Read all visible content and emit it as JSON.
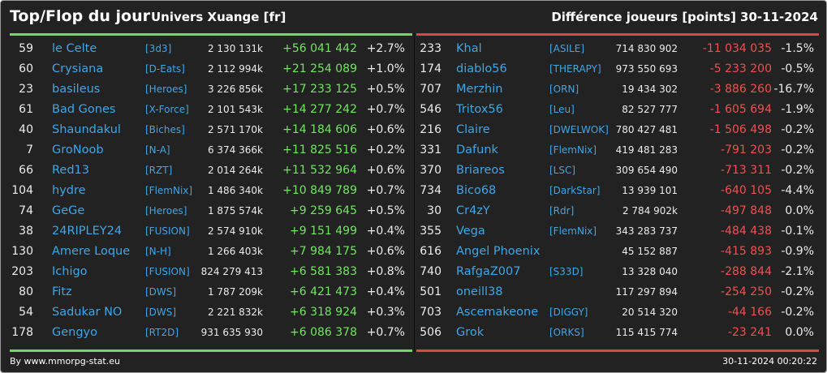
{
  "header": {
    "title": "Top/Flop du jour",
    "universe": "Univers Xuange [fr]",
    "metric": "Différence joueurs [points]",
    "date": "30-11-2024"
  },
  "colors": {
    "background": "#222222",
    "name_link": "#3fa6e8",
    "positive": "#72e561",
    "negative": "#ef5050",
    "top_accent": "#6bdc5e",
    "flop_accent": "#e0483f"
  },
  "top": [
    {
      "rank": "59",
      "name": "le Celte",
      "guild": "[3d3]",
      "points": "2 130 131k",
      "diff": "+56 041 442",
      "pct": "+2.7%"
    },
    {
      "rank": "60",
      "name": "Crysiana",
      "guild": "[D-Eats]",
      "points": "2 112 994k",
      "diff": "+21 254 089",
      "pct": "+1.0%"
    },
    {
      "rank": "23",
      "name": "basileus",
      "guild": "[Heroes]",
      "points": "3 226 856k",
      "diff": "+17 233 125",
      "pct": "+0.5%"
    },
    {
      "rank": "61",
      "name": "Bad Gones",
      "guild": "[X-Force]",
      "points": "2 101 543k",
      "diff": "+14 277 242",
      "pct": "+0.7%"
    },
    {
      "rank": "40",
      "name": "Shaundakul",
      "guild": "[Biches]",
      "points": "2 571 170k",
      "diff": "+14 184 606",
      "pct": "+0.6%"
    },
    {
      "rank": "7",
      "name": "GroNoob",
      "guild": "[N-A]",
      "points": "6 374 366k",
      "diff": "+11 825 516",
      "pct": "+0.2%"
    },
    {
      "rank": "66",
      "name": "Red13",
      "guild": "[RZT]",
      "points": "2 014 264k",
      "diff": "+11 532 964",
      "pct": "+0.6%"
    },
    {
      "rank": "104",
      "name": "hydre",
      "guild": "[FlemNix]",
      "points": "1 486 340k",
      "diff": "+10 849 789",
      "pct": "+0.7%"
    },
    {
      "rank": "74",
      "name": "GeGe",
      "guild": "[Heroes]",
      "points": "1 875 574k",
      "diff": "+9 259 645",
      "pct": "+0.5%"
    },
    {
      "rank": "38",
      "name": "24RIPLEY24",
      "guild": "[FUSION]",
      "points": "2 574 910k",
      "diff": "+9 151 499",
      "pct": "+0.4%"
    },
    {
      "rank": "130",
      "name": "Amere Loque",
      "guild": "[N-H]",
      "points": "1 266 403k",
      "diff": "+7 984 175",
      "pct": "+0.6%"
    },
    {
      "rank": "203",
      "name": "Ichigo",
      "guild": "[FUSION]",
      "points": "824 279 413",
      "diff": "+6 581 383",
      "pct": "+0.8%"
    },
    {
      "rank": "80",
      "name": "Fitz",
      "guild": "[DWS]",
      "points": "1 787 209k",
      "diff": "+6 421 473",
      "pct": "+0.4%"
    },
    {
      "rank": "54",
      "name": "Sadukar NO",
      "guild": "[DWS]",
      "points": "2 221 832k",
      "diff": "+6 318 924",
      "pct": "+0.3%"
    },
    {
      "rank": "178",
      "name": "Gengyo",
      "guild": "[RT2D]",
      "points": "931 635 930",
      "diff": "+6 086 378",
      "pct": "+0.7%"
    }
  ],
  "flop": [
    {
      "rank": "233",
      "name": "Khal",
      "guild": "[ASILE]",
      "points": "714 830 902",
      "diff": "-11 034 035",
      "pct": "-1.5%"
    },
    {
      "rank": "174",
      "name": "diablo56",
      "guild": "[THERAPY]",
      "points": "973 550 693",
      "diff": "-5 233 200",
      "pct": "-0.5%"
    },
    {
      "rank": "707",
      "name": "Merzhin",
      "guild": "[ORN]",
      "points": "19 434 302",
      "diff": "-3 886 260",
      "pct": "-16.7%"
    },
    {
      "rank": "546",
      "name": "Tritox56",
      "guild": "[Leu]",
      "points": "82 527 777",
      "diff": "-1 605 694",
      "pct": "-1.9%"
    },
    {
      "rank": "216",
      "name": "Claire",
      "guild": "[DWELWOK]",
      "points": "780 427 481",
      "diff": "-1 506 498",
      "pct": "-0.2%"
    },
    {
      "rank": "331",
      "name": "Dafunk",
      "guild": "[FlemNix]",
      "points": "419 481 283",
      "diff": "-791 203",
      "pct": "-0.2%"
    },
    {
      "rank": "370",
      "name": "Briareos",
      "guild": "[LSC]",
      "points": "309 654 490",
      "diff": "-713 311",
      "pct": "-0.2%"
    },
    {
      "rank": "734",
      "name": "Bico68",
      "guild": "[DarkStar]",
      "points": "13 939 101",
      "diff": "-640 105",
      "pct": "-4.4%"
    },
    {
      "rank": "30",
      "name": "Cr4zY",
      "guild": "[Rdr]",
      "points": "2 784 902k",
      "diff": "-497 848",
      "pct": "0.0%"
    },
    {
      "rank": "355",
      "name": "Vega",
      "guild": "[FlemNix]",
      "points": "343 283 737",
      "diff": "-484 438",
      "pct": "-0.1%"
    },
    {
      "rank": "616",
      "name": "Angel Phoenix",
      "guild": "",
      "points": "45 152 887",
      "diff": "-415 893",
      "pct": "-0.9%"
    },
    {
      "rank": "740",
      "name": "RafgaZ007",
      "guild": "[S33D]",
      "points": "13 328 040",
      "diff": "-288 844",
      "pct": "-2.1%"
    },
    {
      "rank": "501",
      "name": "oneill38",
      "guild": "",
      "points": "117 297 894",
      "diff": "-254 250",
      "pct": "-0.2%"
    },
    {
      "rank": "703",
      "name": "Ascemakeone",
      "guild": "[DIGGY]",
      "points": "20 514 320",
      "diff": "-44 166",
      "pct": "-0.2%"
    },
    {
      "rank": "506",
      "name": "Grok",
      "guild": "[ORKS]",
      "points": "115 415 774",
      "diff": "-23 241",
      "pct": "0.0%"
    }
  ],
  "footer": {
    "credit": "By www.mmorpg-stat.eu",
    "timestamp": "30-11-2024 00:20:22"
  }
}
